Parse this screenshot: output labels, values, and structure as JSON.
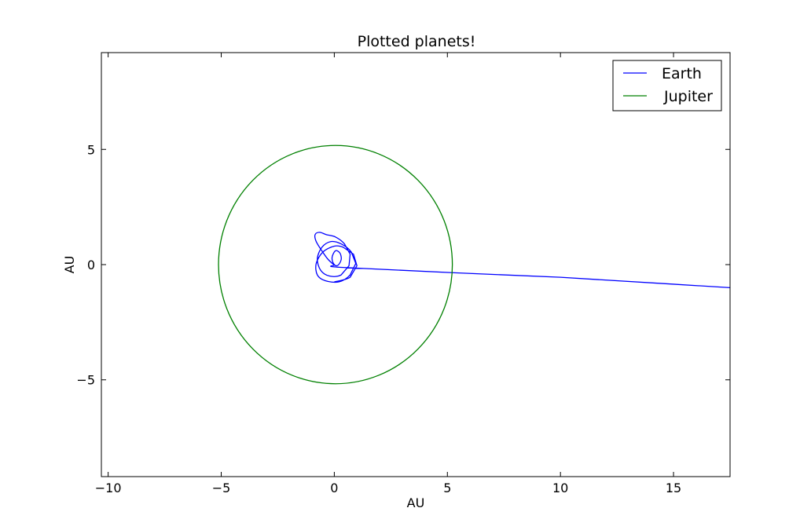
{
  "chart_data": {
    "type": "line",
    "title": "Plotted planets!",
    "xlabel": "AU",
    "ylabel": "AU",
    "xlim": [
      -10.3,
      17.5
    ],
    "ylim": [
      -9.2,
      9.2
    ],
    "xticks": [
      -10,
      -5,
      0,
      5,
      10,
      15
    ],
    "xtick_labels": [
      "−10",
      "−5",
      "0",
      "5",
      "10",
      "15"
    ],
    "yticks": [
      -5,
      0,
      5
    ],
    "ytick_labels": [
      "−5",
      "0",
      "5"
    ],
    "grid": false,
    "legend_position": "top-right",
    "series": [
      {
        "name": "Earth",
        "color": "#0000ff",
        "x": [
          0.0,
          0.7,
          1.0,
          0.85,
          0.4,
          0.0,
          -0.5,
          -0.8,
          -0.75,
          -0.4,
          0.2,
          0.7,
          0.95,
          0.75,
          0.3,
          -0.15,
          -0.55,
          -0.75,
          -0.6,
          -0.2,
          0.3,
          0.65,
          0.7,
          0.45,
          0.05,
          -0.35,
          -0.65,
          -0.85,
          -0.8,
          -0.55,
          -0.25,
          0.1,
          0.3,
          0.25,
          0.05,
          -0.1,
          0.0,
          0.3,
          5.2,
          10.0,
          15.0,
          17.5
        ],
        "y": [
          -0.75,
          -0.55,
          -0.05,
          0.45,
          0.75,
          0.8,
          0.55,
          0.05,
          -0.45,
          -0.7,
          -0.75,
          -0.45,
          0.05,
          0.55,
          0.9,
          1.0,
          0.75,
          0.25,
          -0.25,
          -0.5,
          -0.45,
          -0.05,
          0.45,
          0.9,
          1.2,
          1.3,
          1.4,
          1.3,
          1.0,
          0.6,
          0.2,
          -0.05,
          0.2,
          0.5,
          0.6,
          0.3,
          0.0,
          -0.12,
          -0.35,
          -0.55,
          -0.85,
          -1.0
        ]
      },
      {
        "name": "Jupiter",
        "color": "#008000",
        "type": "circle",
        "center": [
          0.05,
          0.0
        ],
        "radius": 5.17
      }
    ]
  }
}
